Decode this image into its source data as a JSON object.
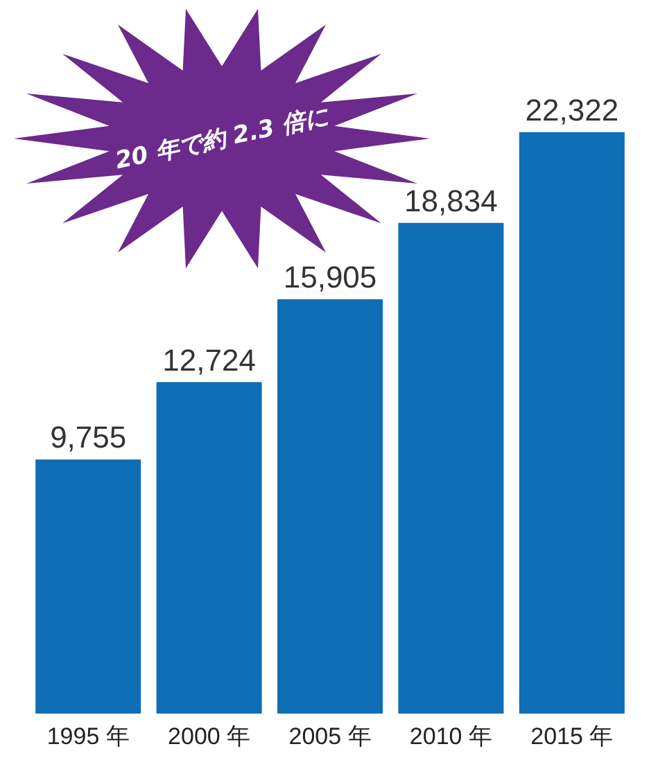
{
  "chart_data": {
    "type": "bar",
    "categories": [
      "1995 年",
      "2000 年",
      "2005 年",
      "2010 年",
      "2015 年"
    ],
    "values": [
      9755,
      12724,
      15905,
      18834,
      22322
    ],
    "value_labels": [
      "9,755",
      "12,724",
      "15,905",
      "18,834",
      "22,322"
    ],
    "color": "#0f6db5",
    "tick_labels": "x",
    "annotations": [
      "20 年で約 2.3 倍に"
    ]
  }
}
